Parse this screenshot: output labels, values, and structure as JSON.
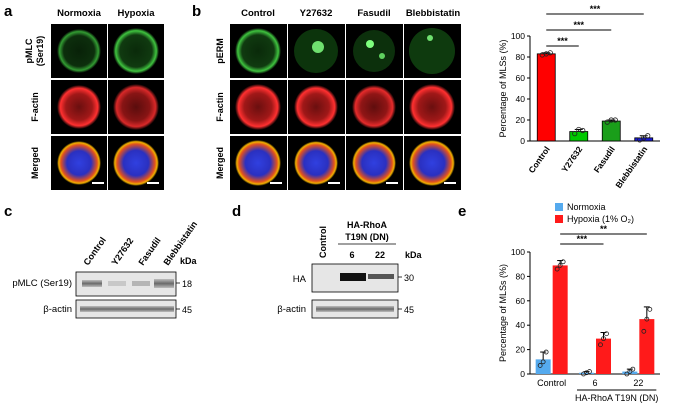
{
  "panels": {
    "a": {
      "letter": "a",
      "columns": [
        "Normoxia",
        "Hypoxia"
      ],
      "rows": [
        "pMLC\n(Ser19)",
        "F-actin",
        "Merged"
      ]
    },
    "b": {
      "letter": "b",
      "columns": [
        "Control",
        "Y27632",
        "Fasudil",
        "Blebbistatin"
      ],
      "rows": [
        "pERM",
        "F-actin",
        "Merged"
      ]
    },
    "c": {
      "letter": "c",
      "lanes": [
        "Control",
        "Y27632",
        "Fasudil",
        "Blebbistatin"
      ],
      "kda_label": "kDa",
      "blots": [
        {
          "label": "pMLC (Ser19)",
          "kda": "18"
        },
        {
          "label": "β-actin",
          "kda": "45"
        }
      ]
    },
    "d": {
      "letter": "d",
      "header_line1": "HA-RhoA",
      "header_line2": "T19N (DN)",
      "control_lane": "Control",
      "lanes": [
        "6",
        "22"
      ],
      "kda_label": "kDa",
      "blots": [
        {
          "label": "HA",
          "kda": "30"
        },
        {
          "label": "β-actin",
          "kda": "45"
        }
      ]
    },
    "e": {
      "letter": "e"
    }
  },
  "chart_data": [
    {
      "panel": "b",
      "type": "bar",
      "ylabel": "Percentage of MLSs (%)",
      "ylim": [
        0,
        100
      ],
      "yticks": [
        0,
        20,
        40,
        60,
        80,
        100
      ],
      "categories": [
        "Control",
        "Y27632",
        "Fasudil",
        "Blebbistatin"
      ],
      "values": [
        83,
        9,
        19,
        3
      ],
      "errors": [
        1,
        2,
        1,
        2
      ],
      "points": [
        [
          82,
          83,
          84
        ],
        [
          7,
          11,
          10
        ],
        [
          18,
          20,
          20
        ],
        [
          1,
          3,
          5
        ]
      ],
      "colors": [
        "#ff0000",
        "#00c800",
        "#1a9e1a",
        "#1a1ad6"
      ],
      "significance": [
        {
          "from": 0,
          "to": 1,
          "label": "***"
        },
        {
          "from": 0,
          "to": 2,
          "label": "***"
        },
        {
          "from": 0,
          "to": 3,
          "label": "***"
        }
      ]
    },
    {
      "panel": "e",
      "type": "bar",
      "ylabel": "Percentage of MLSs (%)",
      "ylim": [
        0,
        100
      ],
      "yticks": [
        0,
        20,
        40,
        60,
        80,
        100
      ],
      "categories": [
        "Control",
        "6",
        "22"
      ],
      "group_label": "HA-RhoA T19N (DN)",
      "legend_position": "top",
      "series": [
        {
          "name": "Normoxia",
          "color": "#55aaee",
          "values": [
            12,
            1,
            2
          ],
          "errors": [
            6,
            1,
            2
          ],
          "points": [
            [
              7,
              10,
              18
            ],
            [
              0,
              1,
              2
            ],
            [
              0,
              2,
              4
            ]
          ]
        },
        {
          "name": "Hypoxia (1% O₂)",
          "color": "#ff1a1a",
          "values": [
            89,
            29,
            45
          ],
          "errors": [
            4,
            5,
            10
          ],
          "points": [
            [
              86,
              89,
              92
            ],
            [
              24,
              29,
              33
            ],
            [
              35,
              45,
              53
            ]
          ]
        }
      ],
      "significance": [
        {
          "from": 0,
          "to": 1,
          "label": "***"
        },
        {
          "from": 0,
          "to": 2,
          "label": "**"
        }
      ]
    }
  ]
}
